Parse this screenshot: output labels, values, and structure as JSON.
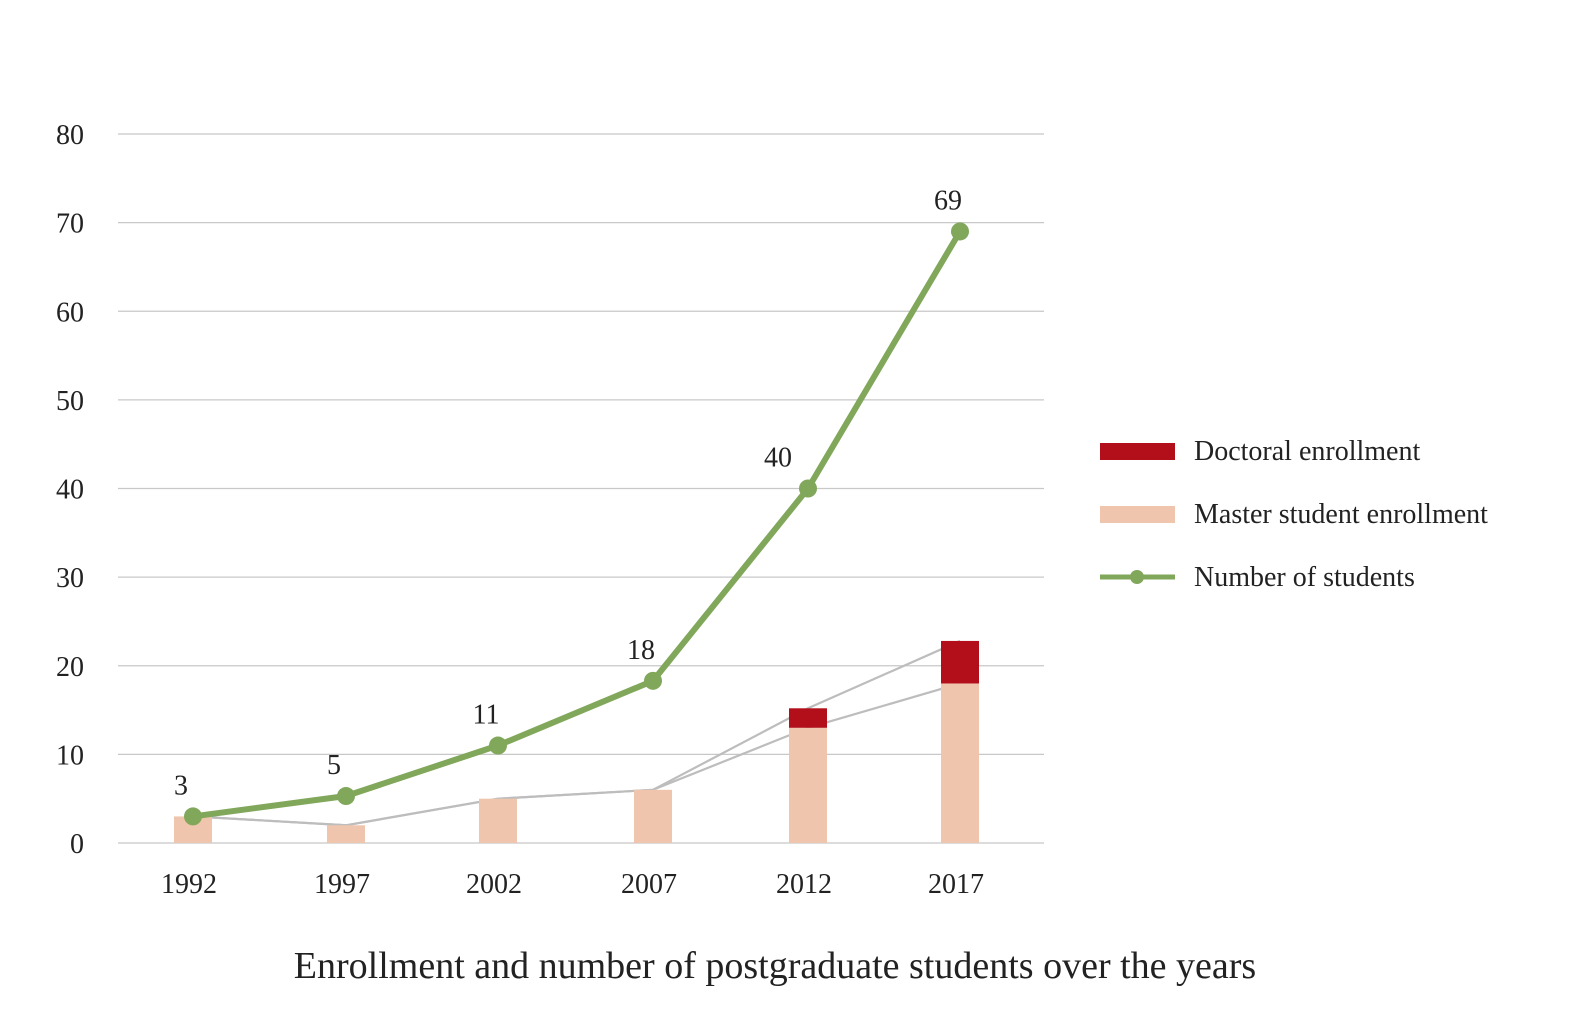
{
  "chart_data": {
    "type": "bar",
    "title": "Enrollment and number of postgraduate students over the years",
    "xlabel": "",
    "ylabel": "",
    "categories": [
      "1992",
      "1997",
      "2002",
      "2007",
      "2012",
      "2017"
    ],
    "ylim": [
      0,
      80
    ],
    "yticks": [
      "0",
      "10",
      "20",
      "30",
      "40",
      "50",
      "60",
      "70",
      "80"
    ],
    "grid": true,
    "legend_position": "right",
    "series": [
      {
        "name": "Doctoral enrollment",
        "kind": "stacked-bar",
        "color": "#b20f1a",
        "values": [
          0,
          0,
          0,
          0,
          2.2,
          4.8
        ]
      },
      {
        "name": "Master student enrollment",
        "kind": "stacked-bar",
        "color": "#efc5ae",
        "values": [
          3,
          2,
          5,
          6,
          13,
          18
        ]
      },
      {
        "name": "Number of students",
        "kind": "line",
        "color": "#80a75a",
        "values": [
          3,
          5.3,
          11,
          18.3,
          40,
          69
        ],
        "labels": [
          "3",
          "5",
          "11",
          "18",
          "40",
          "69"
        ]
      }
    ],
    "connector_color": "#bdbdbd"
  }
}
